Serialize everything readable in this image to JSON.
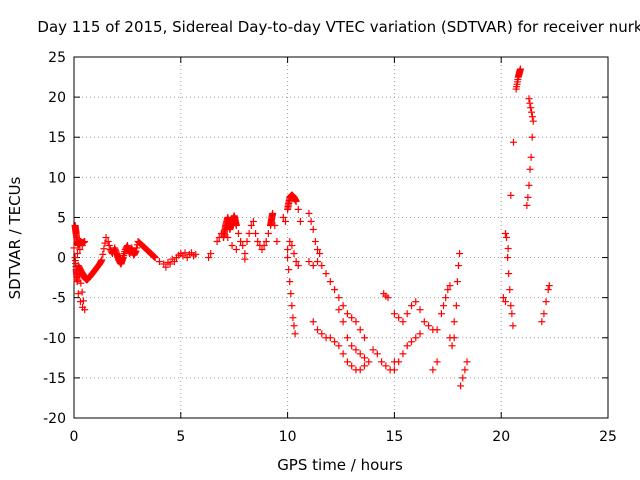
{
  "chart_data": {
    "type": "scatter",
    "title": "Day 115 of 2015, Sidereal Day-to-day VTEC variation (SDTVAR) for receiver nurk",
    "xlabel": "GPS time / hours",
    "ylabel": "SDTVAR / TECUs",
    "xlim": [
      0,
      25
    ],
    "ylim": [
      -20,
      25
    ],
    "xticks": [
      0,
      5,
      10,
      15,
      20,
      25
    ],
    "yticks": [
      -20,
      -15,
      -10,
      -5,
      0,
      5,
      10,
      15,
      20,
      25
    ],
    "xtick_labels": [
      "0",
      "5",
      "10",
      "15",
      "20",
      "25"
    ],
    "ytick_labels": [
      "-20",
      "-15",
      "-10",
      "-5",
      "0",
      "5",
      "10",
      "15",
      "20",
      "25"
    ],
    "grid": true,
    "marker": "+",
    "marker_color": "#ff0000",
    "series": [
      {
        "name": "SDTVAR",
        "points": [
          [
            0.0,
            1.2
          ],
          [
            0.05,
            4.0
          ],
          [
            0.1,
            3.0
          ],
          [
            0.15,
            2.0
          ],
          [
            0.2,
            1.5
          ],
          [
            0.3,
            2.0
          ],
          [
            0.4,
            1.8
          ],
          [
            0.5,
            2.0
          ],
          [
            0.05,
            0.0
          ],
          [
            0.1,
            -1.5
          ],
          [
            0.15,
            -3.0
          ],
          [
            0.2,
            -4.5
          ],
          [
            0.3,
            -5.5
          ],
          [
            0.4,
            -6.2
          ],
          [
            0.5,
            -6.5
          ],
          [
            0.2,
            -1.0
          ],
          [
            0.4,
            -2.0
          ],
          [
            0.5,
            -2.5
          ],
          [
            0.6,
            -2.8
          ],
          [
            0.8,
            -2.2
          ],
          [
            1.0,
            -1.5
          ],
          [
            1.2,
            -0.8
          ],
          [
            1.3,
            -0.3
          ],
          [
            1.5,
            2.5
          ],
          [
            1.6,
            2.0
          ],
          [
            1.7,
            1.0
          ],
          [
            1.8,
            0.5
          ],
          [
            1.9,
            1.2
          ],
          [
            2.0,
            0.5
          ],
          [
            2.1,
            -0.3
          ],
          [
            2.2,
            -0.8
          ],
          [
            2.3,
            0.0
          ],
          [
            2.4,
            1.0
          ],
          [
            2.5,
            1.5
          ],
          [
            2.6,
            0.5
          ],
          [
            2.7,
            1.2
          ],
          [
            2.8,
            0.3
          ],
          [
            2.9,
            0.8
          ],
          [
            3.0,
            2.0
          ],
          [
            3.2,
            1.5
          ],
          [
            3.4,
            1.0
          ],
          [
            3.6,
            0.5
          ],
          [
            3.8,
            0.0
          ],
          [
            4.0,
            -0.5
          ],
          [
            4.2,
            -0.8
          ],
          [
            4.3,
            -1.2
          ],
          [
            4.4,
            -0.6
          ],
          [
            4.5,
            -0.8
          ],
          [
            4.6,
            -0.2
          ],
          [
            4.7,
            -0.5
          ],
          [
            4.8,
            0.0
          ],
          [
            4.9,
            0.3
          ],
          [
            5.0,
            0.5
          ],
          [
            5.1,
            0.2
          ],
          [
            5.2,
            0.6
          ],
          [
            5.3,
            0.0
          ],
          [
            5.4,
            0.4
          ],
          [
            5.5,
            0.6
          ],
          [
            5.6,
            0.2
          ],
          [
            5.7,
            0.4
          ],
          [
            6.3,
            0.0
          ],
          [
            6.4,
            0.5
          ],
          [
            6.7,
            2.0
          ],
          [
            6.8,
            2.5
          ],
          [
            6.9,
            3.0
          ],
          [
            7.0,
            2.5
          ],
          [
            7.1,
            4.0
          ],
          [
            7.2,
            5.0
          ],
          [
            7.3,
            3.5
          ],
          [
            7.4,
            4.5
          ],
          [
            7.5,
            5.2
          ],
          [
            7.6,
            4.0
          ],
          [
            7.7,
            3.0
          ],
          [
            7.8,
            2.0
          ],
          [
            7.9,
            1.5
          ],
          [
            8.0,
            0.5
          ],
          [
            8.1,
            2.0
          ],
          [
            8.2,
            3.0
          ],
          [
            8.3,
            4.0
          ],
          [
            8.4,
            4.5
          ],
          [
            8.5,
            3.0
          ],
          [
            8.6,
            2.0
          ],
          [
            8.7,
            1.5
          ],
          [
            8.8,
            1.0
          ],
          [
            8.9,
            1.5
          ],
          [
            9.0,
            2.0
          ],
          [
            9.1,
            3.0
          ],
          [
            9.2,
            4.0
          ],
          [
            9.3,
            5.5
          ],
          [
            9.4,
            4.0
          ],
          [
            9.5,
            2.0
          ],
          [
            7.2,
            2.5
          ],
          [
            7.4,
            1.5
          ],
          [
            7.6,
            1.0
          ],
          [
            8.0,
            -0.2
          ],
          [
            9.8,
            5.0
          ],
          [
            9.9,
            4.5
          ],
          [
            10.0,
            6.0
          ],
          [
            10.1,
            7.5
          ],
          [
            10.2,
            7.8
          ],
          [
            10.3,
            7.5
          ],
          [
            10.4,
            7.0
          ],
          [
            10.5,
            6.0
          ],
          [
            10.6,
            4.5
          ],
          [
            10.0,
            1.0
          ],
          [
            10.1,
            2.0
          ],
          [
            10.2,
            1.5
          ],
          [
            10.3,
            0.5
          ],
          [
            10.4,
            -0.5
          ],
          [
            10.5,
            -1.0
          ],
          [
            10.0,
            0.0
          ],
          [
            10.05,
            -1.5
          ],
          [
            10.1,
            -3.0
          ],
          [
            10.15,
            -4.5
          ],
          [
            10.2,
            -6.0
          ],
          [
            10.25,
            -7.5
          ],
          [
            10.3,
            -8.5
          ],
          [
            10.35,
            -9.5
          ],
          [
            11.0,
            5.5
          ],
          [
            11.1,
            4.5
          ],
          [
            11.2,
            3.5
          ],
          [
            11.3,
            2.0
          ],
          [
            11.4,
            1.0
          ],
          [
            11.5,
            0.5
          ],
          [
            11.0,
            -0.5
          ],
          [
            11.2,
            -1.0
          ],
          [
            11.4,
            -0.5
          ],
          [
            11.6,
            -1.0
          ],
          [
            11.8,
            -2.0
          ],
          [
            12.0,
            -3.0
          ],
          [
            12.2,
            -4.0
          ],
          [
            12.4,
            -5.0
          ],
          [
            12.6,
            -6.0
          ],
          [
            12.8,
            -7.0
          ],
          [
            13.0,
            -7.5
          ],
          [
            13.2,
            -8.0
          ],
          [
            13.4,
            -9.0
          ],
          [
            13.6,
            -10.0
          ],
          [
            11.2,
            -8.0
          ],
          [
            11.4,
            -9.0
          ],
          [
            11.6,
            -9.5
          ],
          [
            11.8,
            -10.0
          ],
          [
            12.0,
            -10.0
          ],
          [
            12.2,
            -10.5
          ],
          [
            12.4,
            -11.0
          ],
          [
            12.6,
            -12.0
          ],
          [
            12.8,
            -13.0
          ],
          [
            13.0,
            -13.5
          ],
          [
            13.2,
            -14.0
          ],
          [
            13.4,
            -14.0
          ],
          [
            13.6,
            -13.5
          ],
          [
            13.8,
            -13.0
          ],
          [
            12.4,
            -6.5
          ],
          [
            12.6,
            -8.0
          ],
          [
            12.8,
            -10.0
          ],
          [
            13.0,
            -11.0
          ],
          [
            13.2,
            -11.5
          ],
          [
            13.4,
            -12.0
          ],
          [
            13.6,
            -12.5
          ],
          [
            14.0,
            -11.5
          ],
          [
            14.2,
            -12.0
          ],
          [
            14.4,
            -13.0
          ],
          [
            14.6,
            -13.5
          ],
          [
            14.8,
            -14.0
          ],
          [
            15.0,
            -13.0
          ],
          [
            14.5,
            -4.5
          ],
          [
            14.6,
            -4.8
          ],
          [
            14.7,
            -5.0
          ],
          [
            15.0,
            -14.0
          ],
          [
            15.2,
            -13.0
          ],
          [
            15.4,
            -12.0
          ],
          [
            15.6,
            -11.0
          ],
          [
            15.8,
            -10.5
          ],
          [
            16.0,
            -10.0
          ],
          [
            16.2,
            -9.5
          ],
          [
            15.0,
            -7.0
          ],
          [
            15.2,
            -7.5
          ],
          [
            15.4,
            -8.0
          ],
          [
            15.6,
            -7.0
          ],
          [
            15.8,
            -6.0
          ],
          [
            16.0,
            -5.5
          ],
          [
            16.2,
            -6.5
          ],
          [
            16.4,
            -8.0
          ],
          [
            16.6,
            -8.5
          ],
          [
            16.8,
            -9.0
          ],
          [
            17.0,
            -9.0
          ],
          [
            16.8,
            -14.0
          ],
          [
            17.0,
            -13.0
          ],
          [
            17.2,
            -7.0
          ],
          [
            17.3,
            -6.0
          ],
          [
            17.4,
            -5.0
          ],
          [
            17.5,
            -4.0
          ],
          [
            17.6,
            -3.5
          ],
          [
            17.6,
            -10.0
          ],
          [
            17.7,
            -11.0
          ],
          [
            17.8,
            -10.0
          ],
          [
            17.8,
            -8.0
          ],
          [
            17.9,
            -6.0
          ],
          [
            17.95,
            -3.0
          ],
          [
            18.0,
            -1.0
          ],
          [
            18.05,
            0.5
          ],
          [
            18.1,
            -16.0
          ],
          [
            18.2,
            -15.0
          ],
          [
            18.3,
            -14.0
          ],
          [
            18.4,
            -13.0
          ],
          [
            20.2,
            3.0
          ],
          [
            20.25,
            2.5
          ],
          [
            20.3,
            0.0
          ],
          [
            20.35,
            -2.0
          ],
          [
            20.4,
            -4.0
          ],
          [
            20.45,
            -6.0
          ],
          [
            20.5,
            -7.0
          ],
          [
            20.55,
            -8.5
          ],
          [
            20.1,
            -5.0
          ],
          [
            20.2,
            -5.5
          ],
          [
            20.7,
            21.0
          ],
          [
            20.8,
            22.5
          ],
          [
            20.9,
            23.5
          ],
          [
            21.2,
            6.5
          ],
          [
            21.25,
            7.5
          ],
          [
            21.3,
            9.0
          ],
          [
            21.35,
            11.0
          ],
          [
            21.4,
            12.5
          ],
          [
            21.45,
            15.0
          ],
          [
            21.5,
            17.0
          ],
          [
            21.3,
            19.8
          ],
          [
            21.9,
            -8.0
          ],
          [
            22.0,
            -7.0
          ],
          [
            22.1,
            -5.5
          ],
          [
            22.2,
            -4.0
          ],
          [
            22.25,
            -3.5
          ]
        ]
      }
    ]
  }
}
